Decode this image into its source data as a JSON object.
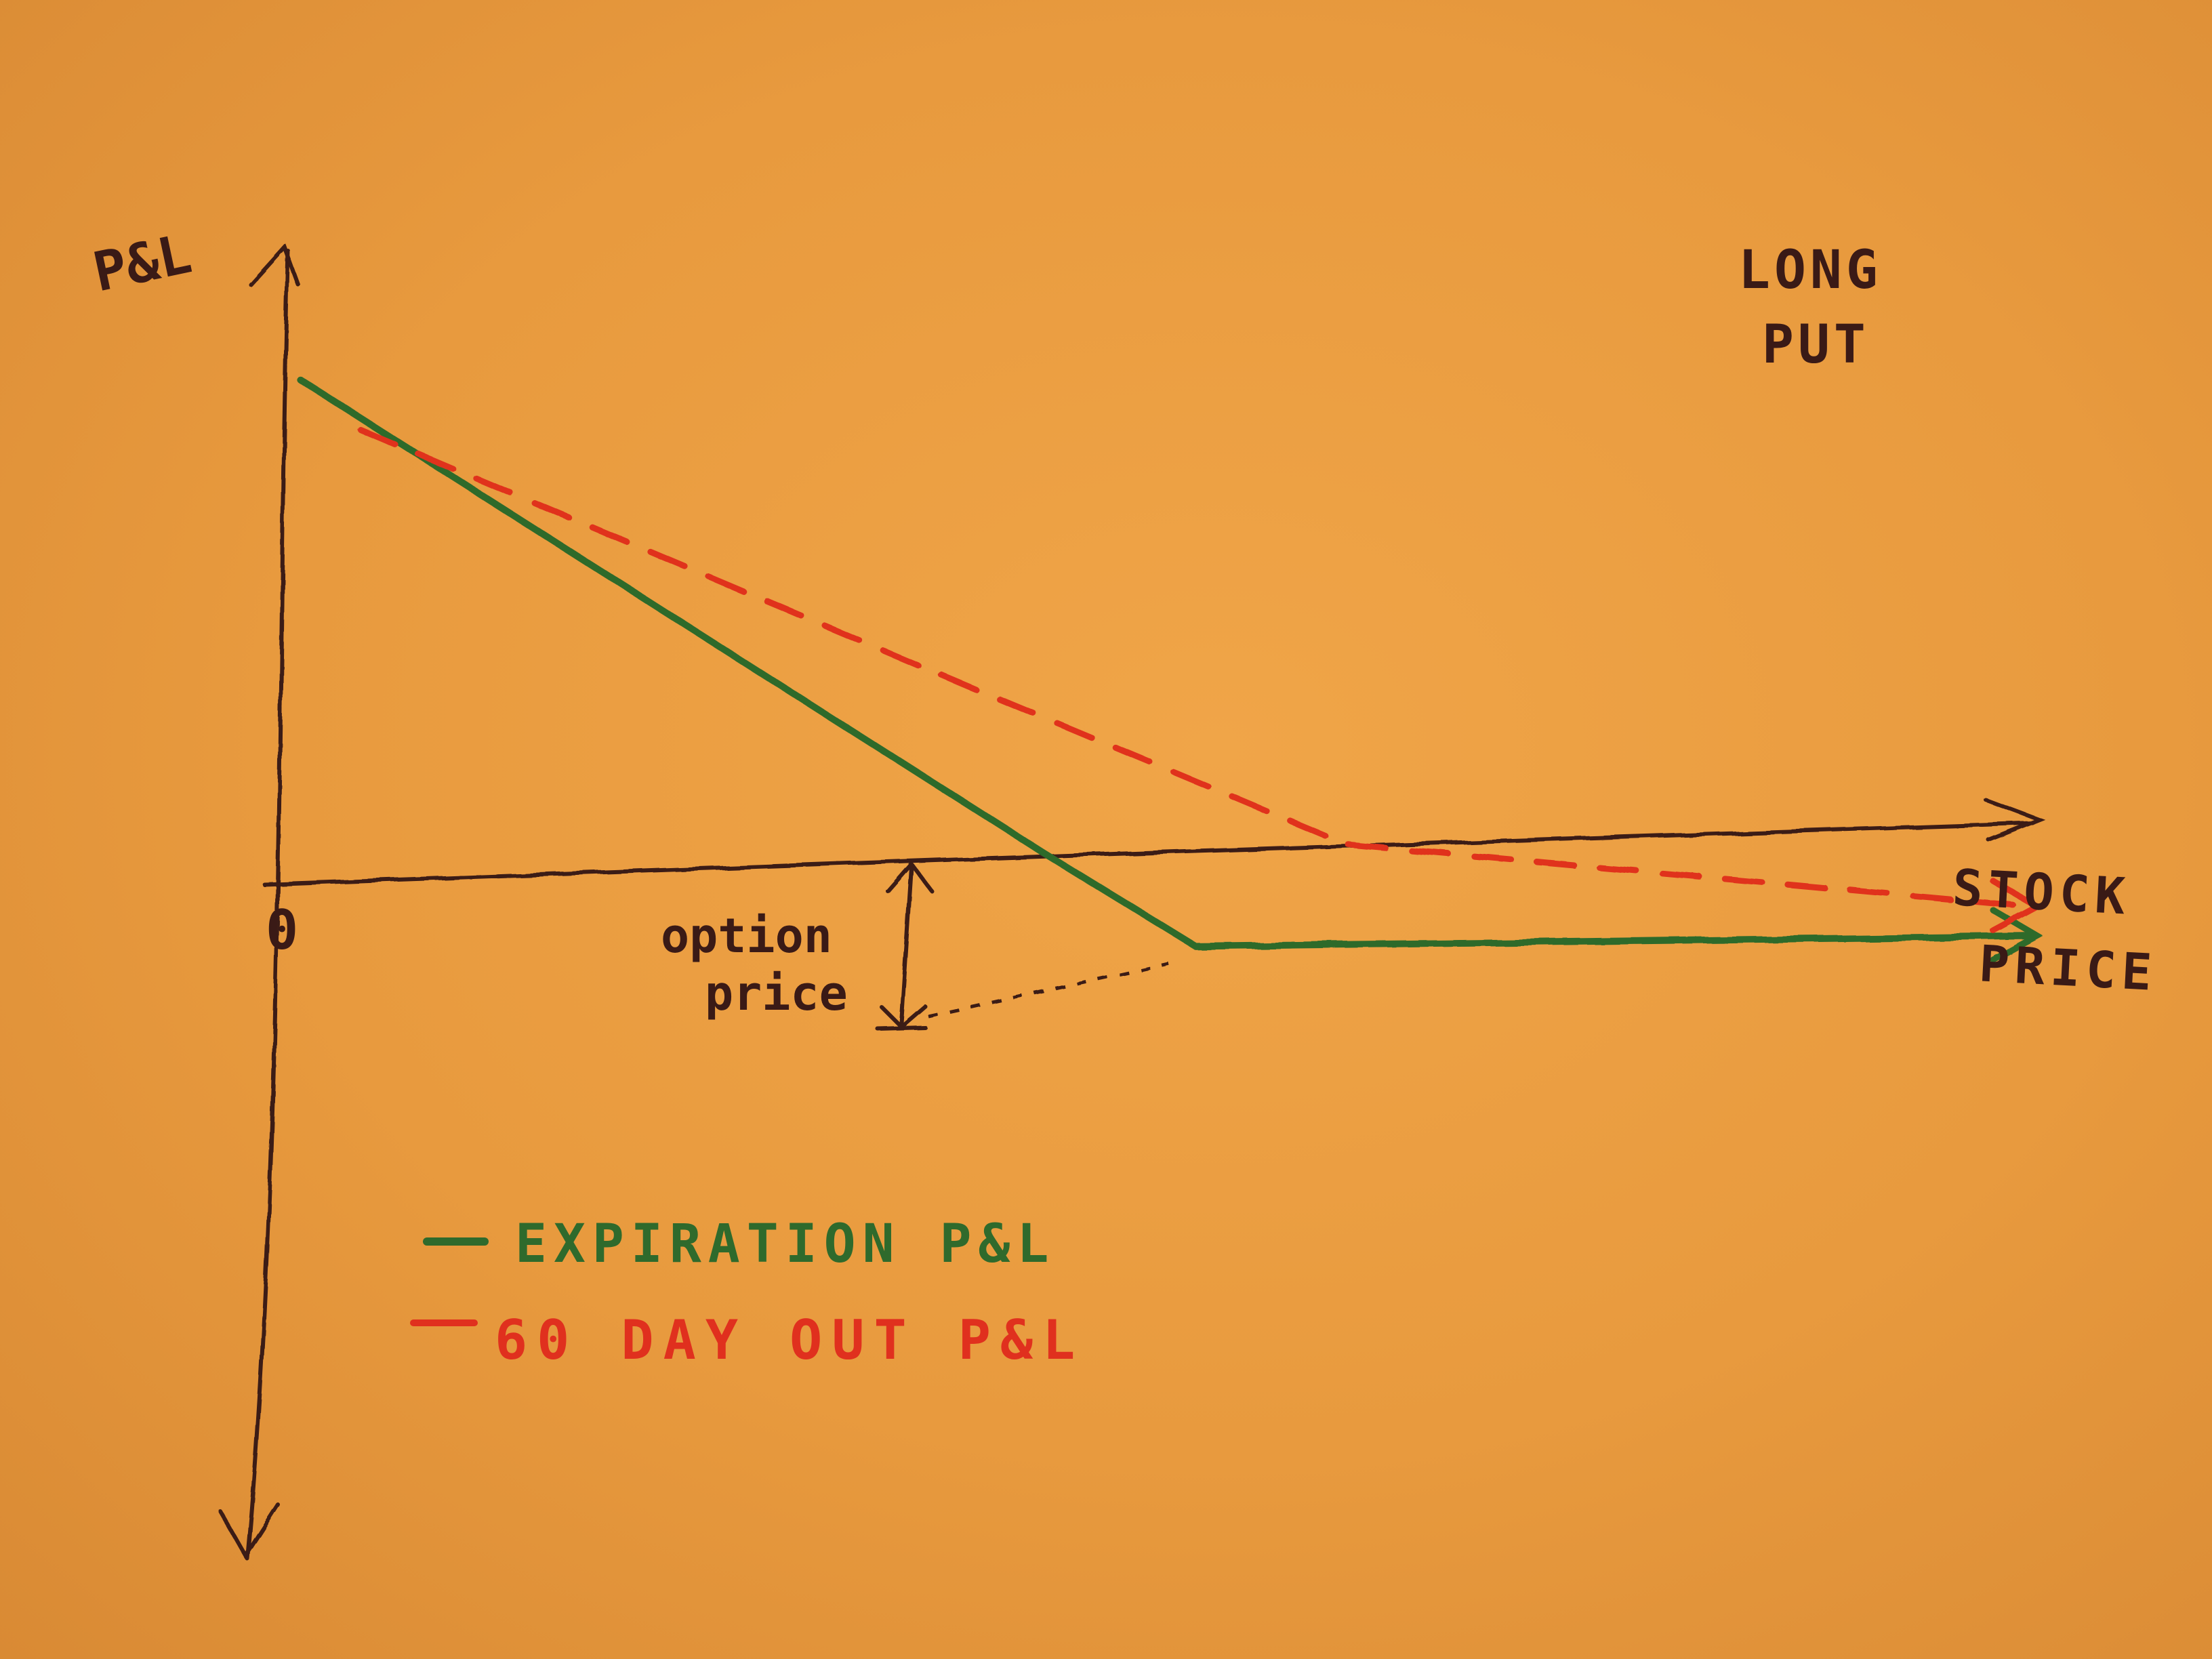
{
  "chart_data": {
    "type": "line",
    "title": "LONG PUT",
    "xlabel": "STOCK PRICE",
    "ylabel": "P&L",
    "origin_label": "0",
    "annotation": "option price",
    "series": [
      {
        "name": "EXPIRATION P&L",
        "color": "#2f6a2c",
        "style": "solid",
        "points": [
          [
            0.02,
            1.52
          ],
          [
            1.0,
            0.0
          ],
          [
            1.2,
            -0.3
          ],
          [
            2.3,
            -0.34
          ]
        ]
      },
      {
        "name": "60 DAY OUT P&L",
        "color": "#e0301e",
        "style": "dashed",
        "points": [
          [
            0.1,
            1.36
          ],
          [
            0.9,
            0.52
          ],
          [
            1.4,
            0.0
          ],
          [
            2.3,
            -0.25
          ]
        ]
      }
    ]
  },
  "colors": {
    "paper": "#ea9d40",
    "ink": "#3a1a16",
    "green": "#2f6a2c",
    "red": "#e0301e"
  }
}
